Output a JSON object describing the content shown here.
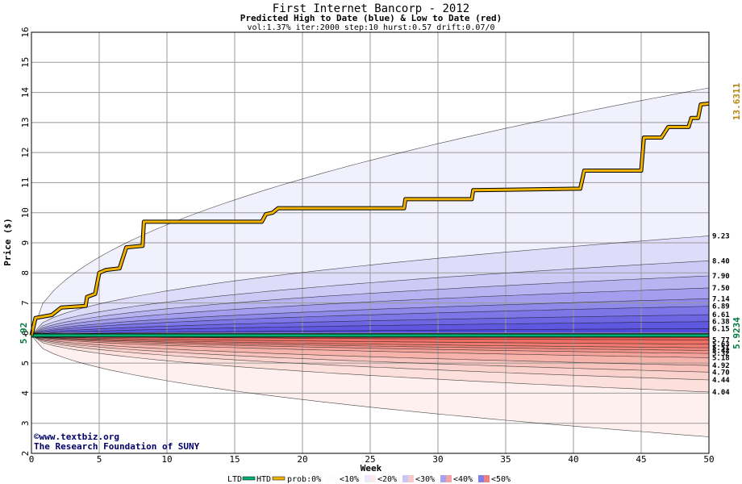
{
  "title": "First Internet Bancorp - 2012",
  "subtitle": "Predicted High to Date (blue) &  Low to Date (red)",
  "params": "vol:1.37% iter:2000 step:10 hurst:0.57 drift:0.07/0",
  "credit_line1": "©www.textbiz.org",
  "credit_line2": "The Research Foundation of SUNY",
  "colors": {
    "htd": "#f0b400",
    "ltd": "#00b070",
    "grid": "#999999",
    "label_green": "#007a3d",
    "label_orange": "#b8860b"
  },
  "chart_data": {
    "type": "area",
    "xlabel": "Week",
    "ylabel": "Price ($)",
    "xlim": [
      0,
      50
    ],
    "ylim": [
      2,
      16
    ],
    "x_ticks": [
      0,
      5,
      10,
      15,
      20,
      25,
      30,
      35,
      40,
      45,
      50
    ],
    "y_ticks": [
      2,
      3,
      4,
      5,
      6,
      7,
      8,
      9,
      10,
      11,
      12,
      13,
      14,
      15,
      16
    ],
    "grid": true,
    "start_price": 5.92,
    "start_label": "5.92",
    "last_low_label": "5.9234",
    "last_high_label": "13.6311",
    "high_quantile_labels": [
      "9.23",
      "8.40",
      "7.90",
      "7.50",
      "7.14",
      "6.89",
      "6.61",
      "6.38",
      "6.15"
    ],
    "high_quantile_end": [
      9.23,
      8.4,
      7.9,
      7.5,
      7.14,
      6.89,
      6.61,
      6.38,
      6.15
    ],
    "high_envelope_end": 14.15,
    "low_quantile_labels": [
      "5.77",
      "5.63",
      "5.51",
      "5.42",
      "5.32",
      "5.18",
      "4.92",
      "4.70",
      "4.44",
      "4.04"
    ],
    "low_quantile_end": [
      5.77,
      5.63,
      5.51,
      5.42,
      5.32,
      5.18,
      4.92,
      4.7,
      4.44,
      4.04
    ],
    "low_envelope_end": 2.55,
    "htd_series": {
      "name": "HTD",
      "points": [
        [
          0,
          5.92
        ],
        [
          0.3,
          6.5
        ],
        [
          1.5,
          6.6
        ],
        [
          2.2,
          6.85
        ],
        [
          4.0,
          6.9
        ],
        [
          4.1,
          7.2
        ],
        [
          4.7,
          7.3
        ],
        [
          5.0,
          8.0
        ],
        [
          5.5,
          8.1
        ],
        [
          6.5,
          8.15
        ],
        [
          7.0,
          8.85
        ],
        [
          8.2,
          8.9
        ],
        [
          8.3,
          9.7
        ],
        [
          17.0,
          9.7
        ],
        [
          17.3,
          9.95
        ],
        [
          17.8,
          10.0
        ],
        [
          18.2,
          10.15
        ],
        [
          27.5,
          10.15
        ],
        [
          27.6,
          10.45
        ],
        [
          32.5,
          10.45
        ],
        [
          32.6,
          10.75
        ],
        [
          40.5,
          10.8
        ],
        [
          40.8,
          11.4
        ],
        [
          45.0,
          11.4
        ],
        [
          45.2,
          12.5
        ],
        [
          46.5,
          12.5
        ],
        [
          47.0,
          12.85
        ],
        [
          48.5,
          12.85
        ],
        [
          48.7,
          13.15
        ],
        [
          49.2,
          13.15
        ],
        [
          49.4,
          13.6
        ],
        [
          50.0,
          13.63
        ]
      ]
    },
    "ltd_series": {
      "name": "LTD",
      "value": 5.92
    },
    "legend": {
      "ltd": "LTD",
      "htd": "HTD",
      "prob0": "prob:0%",
      "p10": "<10%",
      "p20": "<20%",
      "p30": "<30%",
      "p40": "<40%",
      "p50": "<50%"
    }
  }
}
